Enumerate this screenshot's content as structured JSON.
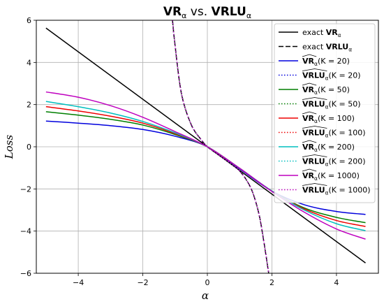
{
  "chart_data": {
    "type": "line",
    "title": {
      "main1": "VR",
      "sub1": "α",
      "mid": " vs. ",
      "main2": "VRLU",
      "sub2": "α"
    },
    "xlabel": "α",
    "ylabel": "Loss",
    "xlim": [
      -5.3,
      5.3
    ],
    "ylim": [
      -6,
      6
    ],
    "xticks": [
      -4,
      -2,
      0,
      2,
      4
    ],
    "yticks": [
      -6,
      -4,
      -2,
      0,
      2,
      4,
      6
    ],
    "xtick_labels": [
      "−4",
      "−2",
      "0",
      "2",
      "4"
    ],
    "ytick_labels": [
      "−6",
      "−4",
      "−2",
      "0",
      "2",
      "4",
      "6"
    ],
    "grid": true,
    "legend_position": "top-right",
    "series": [
      {
        "key": "exact_vr",
        "color": "#000000",
        "dash": "solid",
        "legend": {
          "prefix": "exact ",
          "bold": "VR",
          "sub": "α",
          "suffix": ""
        },
        "x": [
          -5,
          4.9
        ],
        "y": [
          5.63,
          -5.51
        ]
      },
      {
        "key": "exact_vrlu",
        "color": "#000000",
        "dash": "dashed",
        "legend": {
          "prefix": "exact ",
          "bold": "VRLU",
          "sub": "α",
          "suffix": ""
        },
        "x": [
          -1.08,
          -1.0,
          -0.8,
          -0.5,
          -0.2,
          0,
          0.2,
          0.5,
          0.8,
          1.0,
          1.2,
          1.4,
          1.6,
          1.75,
          1.9
        ],
        "y": [
          6.0,
          4.8,
          2.5,
          1.05,
          0.35,
          0.0,
          -0.23,
          -0.55,
          -0.88,
          -1.15,
          -1.55,
          -2.15,
          -3.2,
          -4.5,
          -6.0
        ]
      },
      {
        "key": "vr_20",
        "color": "#0000dd",
        "dash": "solid",
        "legend": {
          "prefix": "",
          "bold": "VR",
          "sub": "α",
          "hat": true,
          "suffix": "(K = 20)"
        },
        "x": [
          -5,
          -4,
          -3,
          -2,
          -1,
          0,
          1,
          2,
          3,
          4,
          4.9
        ],
        "y": [
          1.22,
          1.12,
          1.0,
          0.82,
          0.5,
          0.0,
          -1.05,
          -2.1,
          -2.75,
          -3.07,
          -3.21
        ]
      },
      {
        "key": "vrlu_20",
        "color": "#0000dd",
        "dash": "dotted",
        "legend": {
          "prefix": "",
          "bold": "VRLU",
          "sub": "α",
          "hat": true,
          "suffix": "(K = 20)"
        },
        "x": [
          -1.08,
          -1.0,
          -0.8,
          -0.5,
          -0.2,
          0,
          0.2,
          0.5,
          0.8,
          1.0,
          1.2,
          1.4,
          1.6,
          1.75,
          1.9
        ],
        "y": [
          6.0,
          4.8,
          2.5,
          1.05,
          0.35,
          0.0,
          -0.23,
          -0.55,
          -0.88,
          -1.15,
          -1.55,
          -2.15,
          -3.2,
          -4.5,
          -6.0
        ]
      },
      {
        "key": "vr_50",
        "color": "#007f00",
        "dash": "solid",
        "legend": {
          "prefix": "",
          "bold": "VR",
          "sub": "α",
          "hat": true,
          "suffix": "(K = 50)"
        },
        "x": [
          -5,
          -4,
          -3,
          -2,
          -1,
          0,
          1,
          2,
          3,
          4,
          4.9
        ],
        "y": [
          1.66,
          1.5,
          1.3,
          1.03,
          0.58,
          0.0,
          -1.02,
          -2.1,
          -2.9,
          -3.35,
          -3.6
        ]
      },
      {
        "key": "vrlu_50",
        "color": "#007f00",
        "dash": "dotted",
        "legend": {
          "prefix": "",
          "bold": "VRLU",
          "sub": "α",
          "hat": true,
          "suffix": "(K = 50)"
        },
        "x": [
          -1.08,
          -1.0,
          -0.8,
          -0.5,
          -0.2,
          0,
          0.2,
          0.5,
          0.8,
          1.0,
          1.2,
          1.4,
          1.6,
          1.75,
          1.9
        ],
        "y": [
          6.0,
          4.8,
          2.5,
          1.05,
          0.35,
          0.0,
          -0.23,
          -0.55,
          -0.88,
          -1.15,
          -1.55,
          -2.15,
          -3.2,
          -4.5,
          -6.0
        ]
      },
      {
        "key": "vr_100",
        "color": "#ee0000",
        "dash": "solid",
        "legend": {
          "prefix": "",
          "bold": "VR",
          "sub": "α",
          "hat": true,
          "suffix": "(K = 100)"
        },
        "x": [
          -5,
          -4,
          -3,
          -2,
          -1,
          0,
          1,
          2,
          3,
          4,
          4.9
        ],
        "y": [
          1.9,
          1.7,
          1.45,
          1.12,
          0.62,
          0.0,
          -1.02,
          -2.1,
          -2.95,
          -3.5,
          -3.78
        ]
      },
      {
        "key": "vrlu_100",
        "color": "#ee0000",
        "dash": "dotted",
        "legend": {
          "prefix": "",
          "bold": "VRLU",
          "sub": "α",
          "hat": true,
          "suffix": "(K = 100)"
        },
        "x": [
          -1.08,
          -1.0,
          -0.8,
          -0.5,
          -0.2,
          0,
          0.2,
          0.5,
          0.8,
          1.0,
          1.2,
          1.4,
          1.6,
          1.75,
          1.9
        ],
        "y": [
          6.0,
          4.8,
          2.5,
          1.05,
          0.35,
          0.0,
          -0.23,
          -0.55,
          -0.88,
          -1.15,
          -1.55,
          -2.15,
          -3.2,
          -4.5,
          -6.0
        ]
      },
      {
        "key": "vr_200",
        "color": "#00bfbf",
        "dash": "solid",
        "legend": {
          "prefix": "",
          "bold": "VR",
          "sub": "α",
          "hat": true,
          "suffix": "(K = 200)"
        },
        "x": [
          -5,
          -4,
          -3,
          -2,
          -1,
          0,
          1,
          2,
          3,
          4,
          4.9
        ],
        "y": [
          2.15,
          1.9,
          1.6,
          1.2,
          0.66,
          0.0,
          -1.02,
          -2.1,
          -3.0,
          -3.65,
          -3.98
        ]
      },
      {
        "key": "vrlu_200",
        "color": "#00bfbf",
        "dash": "dotted",
        "legend": {
          "prefix": "",
          "bold": "VRLU",
          "sub": "α",
          "hat": true,
          "suffix": "(K = 200)"
        },
        "x": [
          -1.08,
          -1.0,
          -0.8,
          -0.5,
          -0.2,
          0,
          0.2,
          0.5,
          0.8,
          1.0,
          1.2,
          1.4,
          1.6,
          1.75,
          1.9
        ],
        "y": [
          6.0,
          4.8,
          2.5,
          1.05,
          0.35,
          0.0,
          -0.23,
          -0.55,
          -0.88,
          -1.15,
          -1.55,
          -2.15,
          -3.2,
          -4.5,
          -6.0
        ]
      },
      {
        "key": "vr_1000",
        "color": "#bf00bf",
        "dash": "solid",
        "legend": {
          "prefix": "",
          "bold": "VR",
          "sub": "α",
          "hat": true,
          "suffix": "(K = 1000)"
        },
        "x": [
          -5,
          -4,
          -3,
          -2,
          -1,
          0,
          1,
          2,
          3,
          4,
          4.9
        ],
        "y": [
          2.6,
          2.35,
          1.95,
          1.4,
          0.72,
          0.0,
          -1.02,
          -2.12,
          -3.1,
          -3.9,
          -4.38
        ]
      },
      {
        "key": "vrlu_1000",
        "color": "#bf00bf",
        "dash": "dotted",
        "legend": {
          "prefix": "",
          "bold": "VRLU",
          "sub": "α",
          "hat": true,
          "suffix": "(K = 1000)"
        },
        "x": [
          -1.08,
          -1.0,
          -0.8,
          -0.5,
          -0.2,
          0,
          0.2,
          0.5,
          0.8,
          1.0,
          1.2,
          1.4,
          1.6,
          1.75,
          1.9
        ],
        "y": [
          6.0,
          4.8,
          2.5,
          1.05,
          0.35,
          0.0,
          -0.23,
          -0.55,
          -0.88,
          -1.15,
          -1.55,
          -2.15,
          -3.2,
          -4.5,
          -6.0
        ]
      }
    ]
  }
}
